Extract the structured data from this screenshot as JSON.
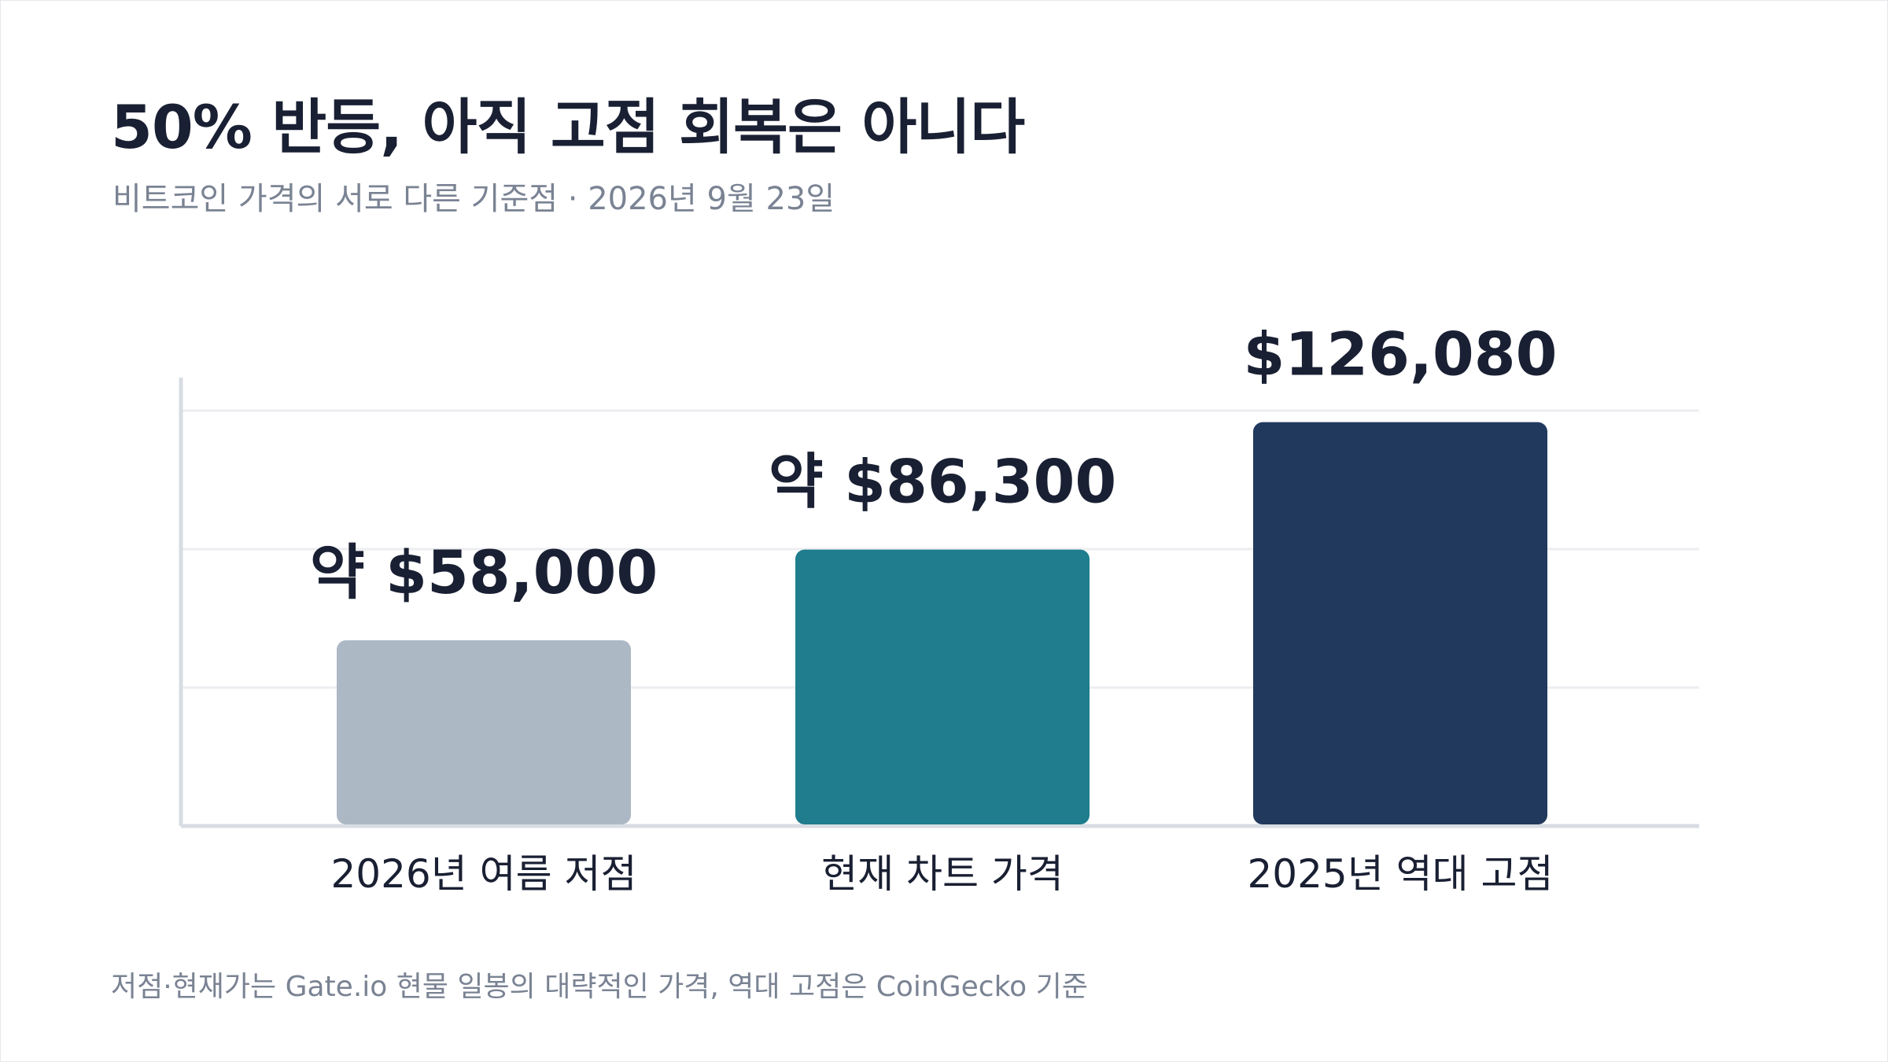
{
  "header": {
    "title": "50% 반등, 아직 고점 회복은 아니다",
    "subtitle": "비트코인 가격의 서로 다른 기준점 · 2026년 9월 23일"
  },
  "footnote": "저점·현재가는 Gate.io 현물 일봉의 대략적인 가격, 역대 고점은 CoinGecko 기준",
  "chart_data": {
    "type": "bar",
    "title": "50% 반등, 아직 고점 회복은 아니다",
    "subtitle": "비트코인 가격의 서로 다른 기준점 · 2026년 9월 23일",
    "categories": [
      "2026년 여름 저점",
      "현재 차트 가격",
      "2025년 역대 고점"
    ],
    "values": [
      58000,
      86300,
      126080
    ],
    "data_labels": [
      "약 $58,000",
      "약 $86,300",
      "$126,080"
    ],
    "colors": [
      "#adb8c5",
      "#1f7d8e",
      "#22395e"
    ],
    "ylim": [
      0,
      140000
    ],
    "grid": true,
    "legend": "none",
    "xlabel": "",
    "ylabel": ""
  }
}
